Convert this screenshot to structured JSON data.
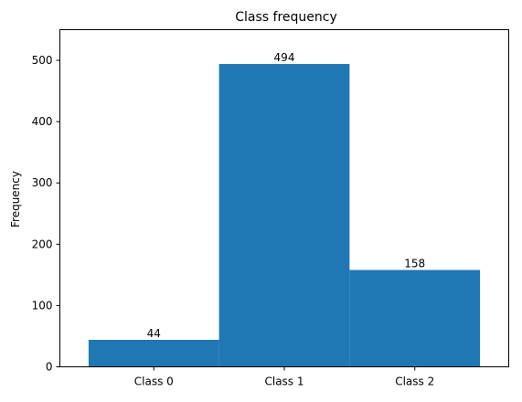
{
  "chart_data": {
    "type": "bar",
    "title": "Class frequency",
    "xlabel": "",
    "ylabel": "Frequency",
    "categories": [
      "Class 0",
      "Class 1",
      "Class 2"
    ],
    "values": [
      44,
      494,
      158
    ],
    "data_labels": [
      "44",
      "494",
      "158"
    ],
    "ylim": [
      0,
      550
    ],
    "yticks": [
      0,
      100,
      200,
      300,
      400,
      500
    ],
    "ytick_labels": [
      "0",
      "100",
      "200",
      "300",
      "400",
      "500"
    ],
    "bar_color": "#1f77b4",
    "grid": false,
    "legend": "none"
  }
}
